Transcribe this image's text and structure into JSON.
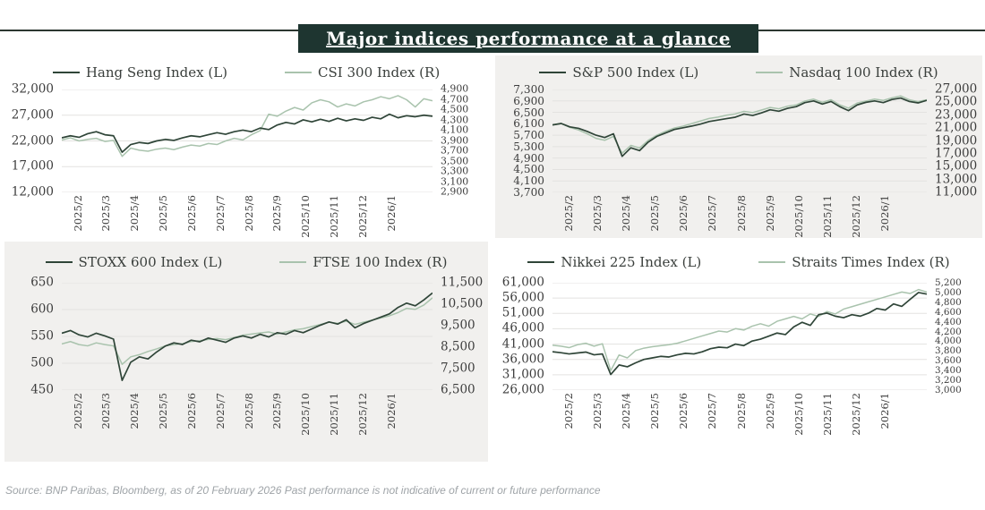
{
  "title": "Major indices performance at a glance",
  "footer": "Source: BNP Paribas, Bloomberg, as of 20 February 2026 Past performance is not indicative of current or future performance",
  "colors": {
    "dark_line": "#2f4538",
    "light_line": "#a9c3ad",
    "title_bg": "#1e3530",
    "panel_gray": "#f1f0ee",
    "grid": "#e3e2e0",
    "axis_text": "#3d3d3d",
    "top_rule": "#2c3630",
    "footer_text": "#9fa4a8"
  },
  "x_labels": [
    "2025/2",
    "2025/3",
    "2025/4",
    "2025/5",
    "2025/6",
    "2025/7",
    "2025/8",
    "2025/9",
    "2025/10",
    "2025/11",
    "2025/12",
    "2026/1"
  ],
  "chart_data": [
    {
      "type": "line",
      "position": "top-left",
      "left_ticks": [
        "32,000",
        "27,000",
        "22,000",
        "17,000",
        "12,000"
      ],
      "right_ticks": [
        "4,900",
        "4,700",
        "4,500",
        "4,300",
        "4,100",
        "3,900",
        "3,700",
        "3,500",
        "3,300",
        "3,100",
        "2,900"
      ],
      "ylim_left": [
        12000,
        32000
      ],
      "ylim_right": [
        2900,
        4900
      ],
      "series": [
        {
          "name": "Hang Seng Index (L)",
          "axis": "left",
          "color_key": "dark",
          "values": [
            22600,
            23000,
            22700,
            23400,
            23800,
            23200,
            23000,
            19800,
            21300,
            21700,
            21500,
            22000,
            22300,
            22100,
            22600,
            23000,
            22800,
            23200,
            23600,
            23300,
            23800,
            24100,
            23800,
            24500,
            24200,
            25100,
            25600,
            25300,
            26100,
            25700,
            26200,
            25800,
            26400,
            25900,
            26300,
            26000,
            26600,
            26300,
            27200,
            26500,
            26900,
            26700,
            27000,
            26800
          ]
        },
        {
          "name": "CSI 300 Index (R)",
          "axis": "right",
          "color_key": "light",
          "values": [
            3920,
            3960,
            3900,
            3930,
            3950,
            3890,
            3910,
            3600,
            3760,
            3720,
            3700,
            3740,
            3760,
            3730,
            3780,
            3820,
            3800,
            3850,
            3830,
            3900,
            3950,
            3920,
            4020,
            4100,
            4420,
            4380,
            4480,
            4550,
            4500,
            4640,
            4700,
            4660,
            4560,
            4620,
            4580,
            4660,
            4700,
            4760,
            4720,
            4780,
            4700,
            4560,
            4720,
            4680
          ]
        }
      ]
    },
    {
      "type": "line",
      "position": "top-right",
      "left_ticks": [
        "7,300",
        "6,900",
        "6,500",
        "6,100",
        "5,700",
        "5,300",
        "4,900",
        "4,500",
        "4,100",
        "3,700"
      ],
      "right_ticks": [
        "27,000",
        "25,000",
        "23,000",
        "21,000",
        "19,000",
        "17,000",
        "15,000",
        "13,000",
        "11,000"
      ],
      "ylim_left": [
        3700,
        7300
      ],
      "ylim_right": [
        11000,
        27000
      ],
      "series": [
        {
          "name": "S&P 500 Index (L)",
          "axis": "left",
          "color_key": "dark",
          "values": [
            6060,
            6110,
            5990,
            5940,
            5830,
            5700,
            5620,
            5750,
            4960,
            5260,
            5160,
            5460,
            5660,
            5780,
            5900,
            5960,
            6020,
            6090,
            6180,
            6230,
            6280,
            6330,
            6440,
            6390,
            6480,
            6590,
            6540,
            6640,
            6700,
            6840,
            6900,
            6790,
            6880,
            6700,
            6560,
            6760,
            6850,
            6900,
            6840,
            6950,
            7000,
            6880,
            6830,
            6920
          ]
        },
        {
          "name": "Nasdaq 100 Index (R)",
          "axis": "right",
          "color_key": "light",
          "values": [
            21500,
            21700,
            21100,
            20700,
            20100,
            19400,
            19100,
            19700,
            17100,
            18300,
            17900,
            19100,
            19900,
            20500,
            21000,
            21300,
            21700,
            22100,
            22500,
            22700,
            23000,
            23200,
            23600,
            23400,
            23800,
            24200,
            24000,
            24400,
            24600,
            25200,
            25500,
            25000,
            25400,
            24600,
            24100,
            24900,
            25200,
            25500,
            25300,
            25700,
            26000,
            25400,
            25100,
            25400
          ]
        }
      ]
    },
    {
      "type": "line",
      "position": "bottom-left",
      "left_ticks": [
        "650",
        "600",
        "550",
        "500",
        "450"
      ],
      "right_ticks": [
        "11,500",
        "10,500",
        "9,500",
        "8,500",
        "7,500",
        "6,500"
      ],
      "ylim_left": [
        450,
        650
      ],
      "ylim_right": [
        6500,
        11500
      ],
      "series": [
        {
          "name": "STOXX 600 Index (L)",
          "axis": "left",
          "color_key": "dark",
          "values": [
            556,
            561,
            553,
            549,
            556,
            551,
            545,
            468,
            502,
            512,
            508,
            521,
            532,
            538,
            535,
            543,
            540,
            547,
            543,
            539,
            547,
            551,
            547,
            554,
            549,
            557,
            554,
            561,
            557,
            564,
            571,
            577,
            573,
            581,
            566,
            574,
            580,
            586,
            592,
            604,
            612,
            607,
            618,
            631
          ]
        },
        {
          "name": "FTSE 100 Index (R)",
          "axis": "right",
          "color_key": "light",
          "values": [
            8650,
            8760,
            8620,
            8560,
            8700,
            8620,
            8560,
            7700,
            8050,
            8150,
            8300,
            8420,
            8560,
            8620,
            8660,
            8760,
            8800,
            8860,
            8900,
            8850,
            8950,
            9060,
            9110,
            9160,
            9210,
            9110,
            9210,
            9310,
            9360,
            9460,
            9560,
            9660,
            9610,
            9710,
            9560,
            9660,
            9760,
            9860,
            9960,
            10110,
            10310,
            10260,
            10460,
            10800
          ]
        }
      ]
    },
    {
      "type": "line",
      "position": "bottom-right",
      "left_ticks": [
        "61,000",
        "56,000",
        "51,000",
        "46,000",
        "41,000",
        "36,000",
        "31,000",
        "26,000"
      ],
      "right_ticks": [
        "5,200",
        "5,000",
        "4,800",
        "4,600",
        "4,400",
        "4,200",
        "4,000",
        "3,800",
        "3,600",
        "3,400",
        "3,200",
        "3,000"
      ],
      "ylim_left": [
        26000,
        61000
      ],
      "ylim_right": [
        3000,
        5200
      ],
      "series": [
        {
          "name": "Nikkei 225 Index (L)",
          "axis": "left",
          "color_key": "dark",
          "values": [
            38500,
            38200,
            37800,
            38100,
            38400,
            37500,
            37800,
            31100,
            34200,
            33600,
            34900,
            36000,
            36500,
            37000,
            36800,
            37500,
            38000,
            37800,
            38500,
            39500,
            40000,
            39800,
            41000,
            40500,
            42000,
            42600,
            43600,
            44600,
            44100,
            46600,
            48100,
            47100,
            50600,
            51100,
            50100,
            49600,
            50600,
            50100,
            51100,
            52600,
            52100,
            54100,
            53300,
            55600,
            57800,
            57300
          ]
        },
        {
          "name": "Straits Times Index (R)",
          "axis": "right",
          "color_key": "light",
          "values": [
            3920,
            3900,
            3870,
            3930,
            3960,
            3900,
            3950,
            3400,
            3720,
            3660,
            3810,
            3860,
            3890,
            3910,
            3930,
            3960,
            4010,
            4060,
            4110,
            4160,
            4210,
            4190,
            4260,
            4230,
            4310,
            4360,
            4310,
            4410,
            4460,
            4510,
            4460,
            4560,
            4510,
            4610,
            4560,
            4660,
            4710,
            4760,
            4810,
            4860,
            4910,
            4960,
            5010,
            4980,
            5060,
            5010
          ]
        }
      ]
    }
  ]
}
